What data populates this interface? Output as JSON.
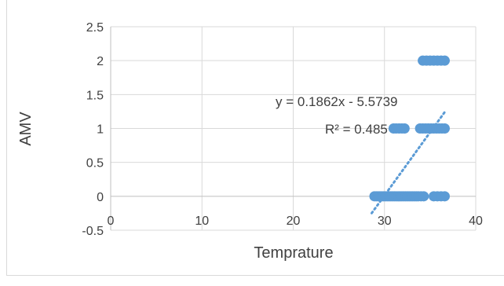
{
  "chart_data": {
    "type": "scatter",
    "title": "",
    "xlabel": "Temprature",
    "ylabel": "AMV",
    "xlim": [
      0,
      40
    ],
    "ylim": [
      -0.5,
      2.5
    ],
    "x_ticks": [
      0,
      10,
      20,
      30,
      40
    ],
    "y_ticks": [
      -0.5,
      0,
      0.5,
      1,
      1.5,
      2,
      2.5
    ],
    "x_tick_labels": [
      "0",
      "10",
      "20",
      "30",
      "40"
    ],
    "y_tick_labels": [
      "-0.5",
      "0",
      "0.5",
      "1",
      "1.5",
      "2",
      "2.5"
    ],
    "grid": true,
    "legend": "none",
    "marker_color": "#5b9bd5",
    "trendline_color": "#5b9bd5",
    "series": [
      {
        "x": [
          28.9,
          29.1,
          29.3,
          29.5,
          29.7,
          29.9,
          30.1,
          30.3,
          30.5,
          30.7,
          30.9,
          31.1,
          31.3,
          31.5,
          31.7,
          31.9,
          32.1,
          32.3,
          32.5,
          32.7,
          32.9,
          33.1,
          33.3,
          33.5,
          33.7,
          34.0,
          34.3,
          35.4,
          35.8,
          36.2,
          36.6,
          31.0,
          31.3,
          31.6,
          31.9,
          32.2,
          33.9,
          34.2,
          34.5,
          34.8,
          35.1,
          35.4,
          35.7,
          36.0,
          36.3,
          36.6,
          34.2,
          34.6,
          35.0,
          35.4,
          35.8,
          36.2,
          36.6
        ],
        "y": [
          0,
          0,
          0,
          0,
          0,
          0,
          0,
          0,
          0,
          0,
          0,
          0,
          0,
          0,
          0,
          0,
          0,
          0,
          0,
          0,
          0,
          0,
          0,
          0,
          0,
          0,
          0,
          0,
          0,
          0,
          0,
          1,
          1,
          1,
          1,
          1,
          1,
          1,
          1,
          1,
          1,
          1,
          1,
          1,
          1,
          1,
          2,
          2,
          2,
          2,
          2,
          2,
          2
        ]
      }
    ],
    "trendline": {
      "slope": 0.1862,
      "intercept": -5.5739,
      "x_range": [
        28.6,
        36.7
      ],
      "equation_label": "y = 0.1862x - 5.5739",
      "r2_label": "R² = 0.485"
    }
  }
}
